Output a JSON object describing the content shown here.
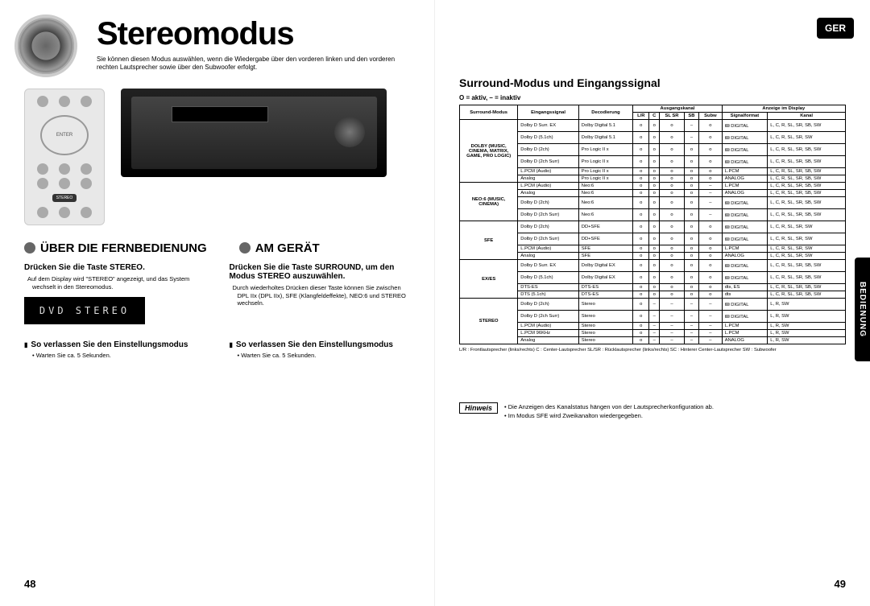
{
  "ger_badge": "GER",
  "side_tab": "BEDIENUNG",
  "title": "Stereomodus",
  "subtitle": "Sie können diesen Modus auswählen, wenn die Wiedergabe über den vorderen linken und den vorderen rechten Lautsprecher sowie über den Subwoofer erfolgt.",
  "remote_enter": "ENTER",
  "remote_stereo": "STEREO",
  "sec1": "ÜBER DIE FERNBEDIENUNG",
  "sec2": "AM GERÄT",
  "col_left": {
    "step": "Drücken Sie die Taste STEREO.",
    "bullet": "Auf dem Display wird \"STEREO\" angezeigt, und das System wechselt in den Stereomodus.",
    "lcd": "DVD STEREO"
  },
  "col_right": {
    "step": "Drücken Sie die Taste SURROUND, um den Modus STEREO auszuwählen.",
    "bullet": "Durch wiederholtes Drücken dieser Taste können Sie zwischen DPL IIx (DPL IIx), SFE (Klangfeldeffekte), NEO:6 und STEREO wechseln."
  },
  "exit_left": {
    "title": "So verlassen Sie den Einstellungsmodus",
    "note": "Warten Sie ca. 5 Sekunden."
  },
  "exit_right": {
    "title": "So verlassen Sie den Einstellungsmodus",
    "note": "Warten Sie ca. 5 Sekunden."
  },
  "page_left": "48",
  "page_right": "49",
  "right_title": "Surround-Modus und Eingangssignal",
  "legend": "O = aktiv,  – = inaktiv",
  "table": {
    "head_top": [
      "Surround-Modus",
      "Eingangssignal",
      "Decodierung",
      "Ausgangskanal",
      "Anzeige im Display"
    ],
    "head_sub_out": [
      "L/R",
      "C",
      "SL SR",
      "SB",
      "Subw"
    ],
    "head_sub_disp": [
      "Signalformat",
      "Kanal"
    ],
    "groups": [
      {
        "mode": "DOLBY (MUSIC, CINEMA, MATRIX, GAME, PRO LOGIC)",
        "rows": [
          {
            "sig": "Dolby D Surr. EX",
            "dec": "Dolby Digital 5.1",
            "out": [
              "o",
              "o",
              "o",
              "–",
              "o"
            ],
            "fmt": "🝙 DIGITAL",
            "ch": "L, C, R, SL, SR, SB, SW"
          },
          {
            "sig": "Dolby D (5.1ch)",
            "dec": "Dolby Digital 5.1",
            "out": [
              "o",
              "o",
              "o",
              "–",
              "o"
            ],
            "fmt": "🝙 DIGITAL",
            "ch": "L, C, R, SL, SR, SW"
          },
          {
            "sig": "Dolby D (2ch)",
            "dec": "Pro Logic II x",
            "out": [
              "o",
              "o",
              "o",
              "o",
              "o"
            ],
            "fmt": "🝙 DIGITAL",
            "ch": "L, C, R, SL, SR, SB, SW"
          },
          {
            "sig": "Dolby D (2ch Surr)",
            "dec": "Pro Logic II x",
            "out": [
              "o",
              "o",
              "o",
              "o",
              "o"
            ],
            "fmt": "🝙 DIGITAL",
            "ch": "L, C, R, SL, SR, SB, SW"
          },
          {
            "sig": "L.PCM (Audio)",
            "dec": "Pro Logic II x",
            "out": [
              "o",
              "o",
              "o",
              "o",
              "o"
            ],
            "fmt": "L.PCM",
            "ch": "L, C, R, SL, SR, SB, SW"
          },
          {
            "sig": "Analog",
            "dec": "Pro Logic II x",
            "out": [
              "o",
              "o",
              "o",
              "o",
              "o"
            ],
            "fmt": "ANALOG",
            "ch": "L, C, R, SL, SR, SB, SW"
          }
        ]
      },
      {
        "mode": "NEO:6 (MUSIC, CINEMA)",
        "rows": [
          {
            "sig": "L.PCM (Audio)",
            "dec": "Neo:6",
            "out": [
              "o",
              "o",
              "o",
              "o",
              "–"
            ],
            "fmt": "L.PCM",
            "ch": "L, C, R, SL, SR, SB, SW"
          },
          {
            "sig": "Analog",
            "dec": "Neo:6",
            "out": [
              "o",
              "o",
              "o",
              "o",
              "–"
            ],
            "fmt": "ANALOG",
            "ch": "L, C, R, SL, SR, SB, SW"
          },
          {
            "sig": "Dolby D (2ch)",
            "dec": "Neo:6",
            "out": [
              "o",
              "o",
              "o",
              "o",
              "–"
            ],
            "fmt": "🝙 DIGITAL",
            "ch": "L, C, R, SL, SR, SB, SW"
          },
          {
            "sig": "Dolby D (2ch Surr)",
            "dec": "Neo:6",
            "out": [
              "o",
              "o",
              "o",
              "o",
              "–"
            ],
            "fmt": "🝙 DIGITAL",
            "ch": "L, C, R, SL, SR, SB, SW"
          }
        ]
      },
      {
        "mode": "SFE",
        "rows": [
          {
            "sig": "Dolby D (2ch)",
            "dec": "DD+SFE",
            "out": [
              "o",
              "o",
              "o",
              "o",
              "o"
            ],
            "fmt": "🝙 DIGITAL",
            "ch": "L, C, R, SL, SR, SW"
          },
          {
            "sig": "Dolby D (2ch Surr)",
            "dec": "DD+SFE",
            "out": [
              "o",
              "o",
              "o",
              "o",
              "o"
            ],
            "fmt": "🝙 DIGITAL",
            "ch": "L, C, R, SL, SR, SW"
          },
          {
            "sig": "L.PCM (Audio)",
            "dec": "SFE",
            "out": [
              "o",
              "o",
              "o",
              "o",
              "o"
            ],
            "fmt": "L.PCM",
            "ch": "L, C, R, SL, SR, SW"
          },
          {
            "sig": "Analog",
            "dec": "SFE",
            "out": [
              "o",
              "o",
              "o",
              "o",
              "o"
            ],
            "fmt": "ANALOG",
            "ch": "L, C, R, SL, SR, SW"
          }
        ]
      },
      {
        "mode": "EX/ES",
        "rows": [
          {
            "sig": "Dolby D Surr. EX",
            "dec": "Dolby Digital EX",
            "out": [
              "o",
              "o",
              "o",
              "o",
              "o"
            ],
            "fmt": "🝙 DIGITAL",
            "ch": "L, C, R, SL, SR, SB, SW"
          },
          {
            "sig": "Dolby D (5.1ch)",
            "dec": "Dolby Digital EX",
            "out": [
              "o",
              "o",
              "o",
              "o",
              "o"
            ],
            "fmt": "🝙 DIGITAL",
            "ch": "L, C, R, SL, SR, SB, SW"
          },
          {
            "sig": "DTS-ES",
            "dec": "DTS-ES",
            "out": [
              "o",
              "o",
              "o",
              "o",
              "o"
            ],
            "fmt": "dts, ES",
            "ch": "L, C, R, SL, SR, SB, SW"
          },
          {
            "sig": "DTS (5.1ch)",
            "dec": "DTS-ES",
            "out": [
              "o",
              "o",
              "o",
              "o",
              "o"
            ],
            "fmt": "dts",
            "ch": "L, C, R, SL, SR, SB, SW"
          }
        ]
      },
      {
        "mode": "STEREO",
        "rows": [
          {
            "sig": "Dolby D (2ch)",
            "dec": "Stereo",
            "out": [
              "o",
              "–",
              "–",
              "–",
              "–"
            ],
            "fmt": "🝙 DIGITAL",
            "ch": "L, R, SW"
          },
          {
            "sig": "Dolby D (2ch Surr)",
            "dec": "Stereo",
            "out": [
              "o",
              "–",
              "–",
              "–",
              "–"
            ],
            "fmt": "🝙 DIGITAL",
            "ch": "L, R, SW"
          },
          {
            "sig": "L.PCM (Audio)",
            "dec": "Stereo",
            "out": [
              "o",
              "–",
              "–",
              "–",
              "–"
            ],
            "fmt": "L.PCM",
            "ch": "L, R, SW"
          },
          {
            "sig": "L.PCM 96KHz",
            "dec": "Stereo",
            "out": [
              "o",
              "–",
              "–",
              "–",
              "–"
            ],
            "fmt": "L.PCM",
            "ch": "L, R, SW"
          },
          {
            "sig": "Analog",
            "dec": "Stereo",
            "out": [
              "o",
              "–",
              "–",
              "–",
              "–"
            ],
            "fmt": "ANALOG",
            "ch": "L, R, SW"
          }
        ]
      }
    ],
    "footnote": "L/R : Frontlautsprecher (links/rechts)   C : Center-Lautsprecher   SL/SR : Rücklautsprecher (links/rechts)   SC : Hinterer Center-Lautsprecher   SW : Subwoofer"
  },
  "hinweis_label": "Hinweis",
  "hinweis": [
    "Die Anzeigen des Kanalstatus hängen von der Lautsprecherkonfiguration ab.",
    "Im Modus SFE wird Zweikanalton wiedergegeben."
  ]
}
